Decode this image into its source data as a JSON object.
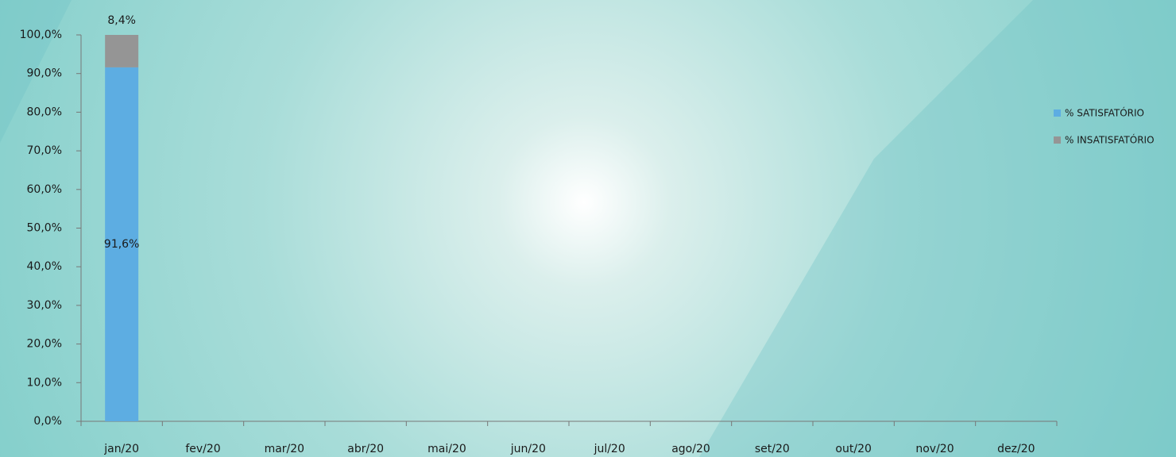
{
  "chart_data": {
    "type": "stacked_bar",
    "categories": [
      "jan/20",
      "fev/20",
      "mar/20",
      "abr/20",
      "mai/20",
      "jun/20",
      "jul/20",
      "ago/20",
      "set/20",
      "out/20",
      "nov/20",
      "dez/20"
    ],
    "series": [
      {
        "name": "% SATISFATÓRIO",
        "color": "#5dade2",
        "values": [
          91.6,
          null,
          null,
          null,
          null,
          null,
          null,
          null,
          null,
          null,
          null,
          null
        ],
        "value_labels": [
          "91,6%",
          null,
          null,
          null,
          null,
          null,
          null,
          null,
          null,
          null,
          null,
          null
        ]
      },
      {
        "name": "% INSATISFATÓRIO",
        "color": "#959595",
        "values": [
          8.4,
          null,
          null,
          null,
          null,
          null,
          null,
          null,
          null,
          null,
          null,
          null
        ],
        "value_labels": [
          "8,4%",
          null,
          null,
          null,
          null,
          null,
          null,
          null,
          null,
          null,
          null,
          null
        ]
      }
    ],
    "ylim": [
      0,
      100
    ],
    "yticks": [
      {
        "value": 0,
        "label": "0,0%"
      },
      {
        "value": 10,
        "label": "10,0%"
      },
      {
        "value": 20,
        "label": "20,0%"
      },
      {
        "value": 30,
        "label": "30,0%"
      },
      {
        "value": 40,
        "label": "40,0%"
      },
      {
        "value": 50,
        "label": "50,0%"
      },
      {
        "value": 60,
        "label": "60,0%"
      },
      {
        "value": 70,
        "label": "70,0%"
      },
      {
        "value": 80,
        "label": "80,0%"
      },
      {
        "value": 90,
        "label": "90,0%"
      },
      {
        "value": 100,
        "label": "100,0%"
      }
    ],
    "grid": false,
    "legend": "right"
  }
}
